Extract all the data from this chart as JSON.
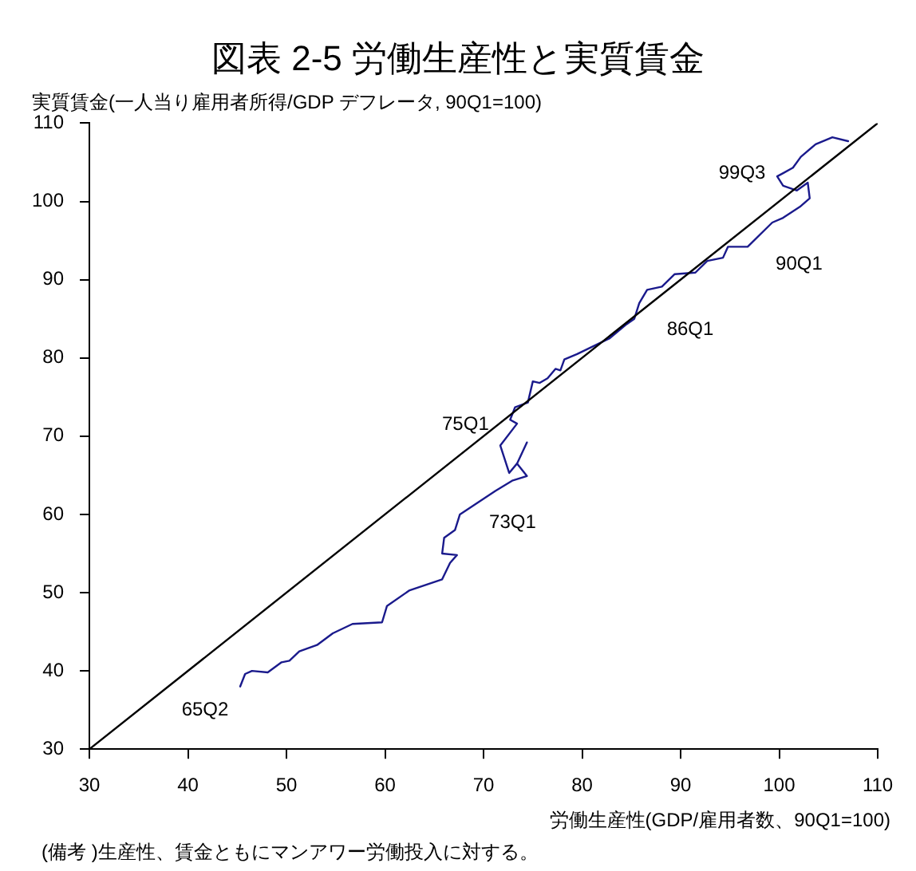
{
  "chart_data": {
    "type": "line",
    "title": "図表 2-5 労働生産性と実質賃金",
    "ylabel": "実質賃金(一人当り雇用者所得/GDP デフレータ, 90Q1=100)",
    "xlabel": "労働生産性(GDP/雇用者数、90Q1=100)",
    "xlim": [
      30,
      110
    ],
    "xticks": [
      30,
      40,
      50,
      60,
      70,
      80,
      90,
      100,
      110
    ],
    "ylim": [
      30,
      110
    ],
    "yticks": [
      30,
      40,
      50,
      60,
      70,
      80,
      90,
      100,
      110
    ],
    "grid": false,
    "legend": false,
    "series": [
      {
        "color": "#000000",
        "x": [
          30,
          110
        ],
        "values": [
          30,
          110
        ]
      },
      {
        "color": "#1a1a8c",
        "x": [
          45.3,
          45.8,
          46.5,
          48.1,
          49.5,
          50.3,
          51.3,
          53.1,
          54.7,
          56.7,
          59.7,
          60.2,
          62.5,
          65.8,
          66.6,
          67.3,
          65.8,
          66.0,
          67.1,
          67.6,
          71.2,
          72.9,
          74.4,
          73.4,
          74.4,
          73.4,
          72.6,
          71.7,
          73.4,
          72.7,
          73.2,
          74.5,
          75.0,
          75.7,
          76.5,
          77.3,
          77.8,
          78.2,
          79.5,
          82.8,
          84.4,
          85.3,
          85.8,
          86.6,
          88.1,
          89.4,
          91.5,
          92.7,
          94.3,
          94.8,
          96.8,
          99.3,
          100.4,
          102.1,
          103.1,
          102.9,
          101.8,
          100.4,
          99.8,
          100.4,
          101.4,
          102.2,
          103.7,
          105.4,
          107.0
        ],
        "values": [
          38,
          39.6,
          40,
          39.8,
          41.1,
          41.3,
          42.5,
          43.3,
          44.8,
          46,
          46.2,
          48.3,
          50.3,
          51.7,
          53.8,
          54.8,
          55,
          57,
          58,
          60,
          63,
          64.3,
          64.9,
          66.5,
          69.2,
          66.5,
          65.3,
          68.8,
          71.6,
          72.1,
          73.7,
          74.3,
          77,
          76.8,
          77.4,
          78.6,
          78.4,
          79.8,
          80.5,
          82.5,
          84.2,
          85,
          87,
          88.7,
          89.1,
          90.7,
          90.9,
          92.4,
          92.8,
          94.2,
          94.2,
          97.3,
          97.9,
          99.3,
          100.4,
          102.4,
          101.4,
          102,
          103.2,
          103.6,
          104.3,
          105.7,
          107.3,
          108.2,
          107.7
        ]
      }
    ],
    "annotations": [
      {
        "text": "65Q2",
        "x": 45.3,
        "y": 38
      },
      {
        "text": "73Q1",
        "x": 67.6,
        "y": 60
      },
      {
        "text": "75Q1",
        "x": 72.7,
        "y": 72.1
      },
      {
        "text": "86Q1",
        "x": 86.6,
        "y": 88.7
      },
      {
        "text": "90Q1",
        "x": 100.4,
        "y": 97.9
      },
      {
        "text": "99Q3",
        "x": 99.8,
        "y": 103.2
      },
      "(備考 )生産性、賃金ともにマンアワー労働投入に対する。"
    ]
  }
}
